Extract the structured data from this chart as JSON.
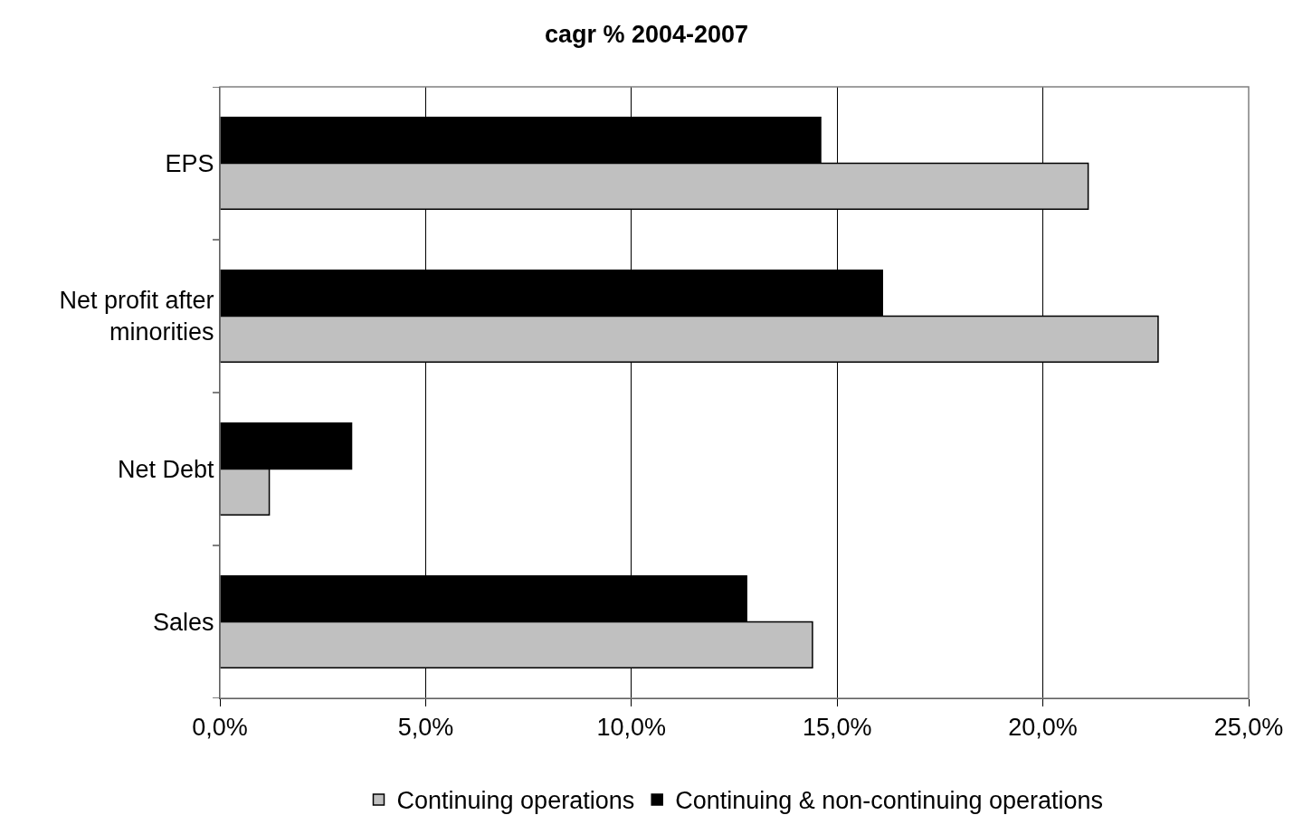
{
  "chart_data": {
    "type": "bar",
    "title": "cagr % 2004-2007",
    "orientation": "horizontal",
    "categories": [
      "EPS",
      "Net profit after minorities",
      "Net Debt",
      "Sales"
    ],
    "series": [
      {
        "name": "Continuing operations",
        "color": "#c0c0c0",
        "values": [
          21.1,
          22.8,
          1.2,
          14.4
        ]
      },
      {
        "name": "Continuing & non-continuing operations",
        "color": "#000000",
        "values": [
          14.6,
          16.1,
          3.2,
          12.8
        ]
      }
    ],
    "xlim": [
      0,
      25
    ],
    "xticks": [
      {
        "value": 0,
        "label": "0,0%"
      },
      {
        "value": 5,
        "label": "5,0%"
      },
      {
        "value": 10,
        "label": "10,0%"
      },
      {
        "value": 15,
        "label": "15,0%"
      },
      {
        "value": 20,
        "label": "20,0%"
      },
      {
        "value": 25,
        "label": "25,0%"
      }
    ],
    "grid": "x",
    "legend": "bottom"
  }
}
